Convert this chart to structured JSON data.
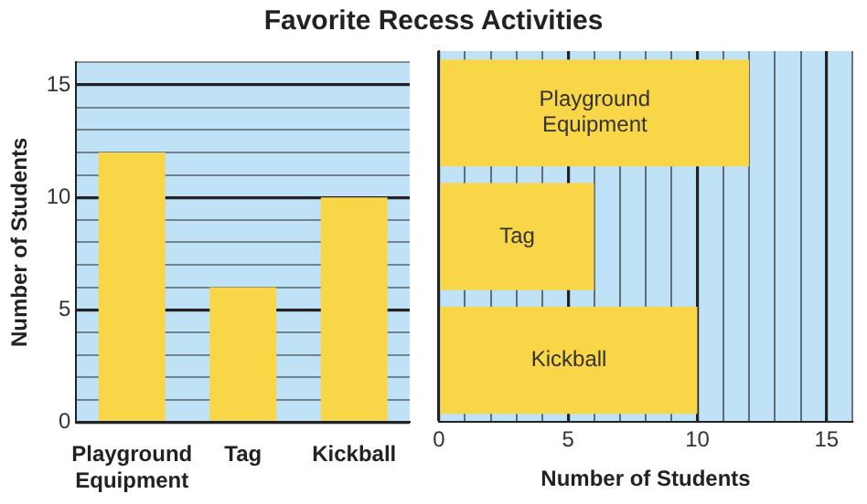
{
  "chart_data": [
    {
      "type": "bar",
      "title": "Favorite Recess Activities",
      "categories": [
        "Playground Equipment",
        "Tag",
        "Kickball"
      ],
      "values": [
        12,
        6,
        10
      ],
      "color": "#f9d548",
      "ylabel": "Number of Students",
      "ylim": [
        0,
        16
      ],
      "yticks": [
        0,
        {
          "value": 1,
          "label": null
        },
        {
          "value": 2,
          "label": null
        },
        {
          "value": 3,
          "label": null
        },
        {
          "value": 4,
          "label": null
        },
        5,
        {
          "value": 6,
          "label": null
        },
        {
          "value": 7,
          "label": null
        },
        {
          "value": 8,
          "label": null
        },
        {
          "value": 9,
          "label": null
        },
        10,
        {
          "value": 11,
          "label": null
        },
        {
          "value": 12,
          "label": null
        },
        {
          "value": 13,
          "label": null
        },
        {
          "value": 14,
          "label": null
        },
        15,
        {
          "value": 16,
          "label": null
        }
      ],
      "grid": "y",
      "bands": [
        {
          "axis": "y",
          "from": 0,
          "to": 16,
          "color": "#bfe2f6"
        }
      ]
    },
    {
      "type": "bar",
      "orientation": "horizontal",
      "categories": [
        "Playground Equipment",
        "Tag",
        "Kickball"
      ],
      "values": [
        12,
        6,
        10
      ],
      "color": "#f9d548",
      "xlabel": "Number of Students",
      "xlim": [
        0,
        16
      ],
      "xticks": [
        0,
        {
          "value": 1,
          "label": null
        },
        {
          "value": 2,
          "label": null
        },
        {
          "value": 3,
          "label": null
        },
        {
          "value": 4,
          "label": null
        },
        5,
        {
          "value": 6,
          "label": null
        },
        {
          "value": 7,
          "label": null
        },
        {
          "value": 8,
          "label": null
        },
        {
          "value": 9,
          "label": null
        },
        10,
        {
          "value": 11,
          "label": null
        },
        {
          "value": 12,
          "label": null
        },
        {
          "value": 13,
          "label": null
        },
        {
          "value": 14,
          "label": null
        },
        15,
        {
          "value": 16,
          "label": null
        }
      ],
      "grid": "x",
      "bands": [
        {
          "axis": "x",
          "from": 0,
          "to": 16,
          "color": "#bfe2f6"
        }
      ]
    }
  ]
}
